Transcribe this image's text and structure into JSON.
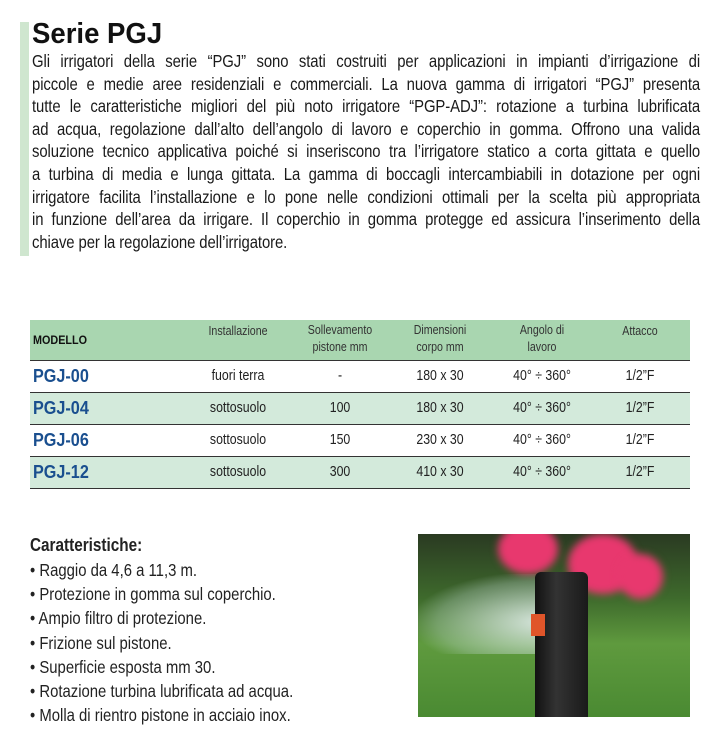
{
  "title": "Serie PGJ",
  "intro_lines": [
    "Gli irrigatori della serie “PGJ” sono stati costruiti per applicazioni in impianti d’irrigazione di",
    "piccole e medie aree residenziali e commerciali. La nuova gamma di irrigatori “PGJ” presenta",
    "tutte le caratteristiche migliori del più noto irrigatore “PGP-ADJ”: rotazione a turbina lubrificata",
    "ad acqua, regolazione dall’alto dell’angolo di lavoro e coperchio in gomma. Offrono una valida",
    "soluzione tecnico applicativa poiché si inseriscono tra l’irrigatore statico a corta gittata e quello",
    "a turbina di media e lunga gittata. La gamma di boccagli intercambiabili in dotazione per ogni",
    "irrigatore facilita l’installazione e lo pone nelle condizioni ottimali per la scelta più appropriata",
    "in funzione dell’area da irrigare. Il coperchio in gomma protegge ed assicura l’inserimento della",
    "chiave per la regolazione dell’irrigatore."
  ],
  "table": {
    "headers": [
      "MODELLO",
      "Installazione",
      "Sollevamento\npistone mm",
      "Dimensioni\ncorpo mm",
      "Angolo di\nlavoro",
      "Attacco"
    ],
    "rows": [
      [
        "PGJ-00",
        "fuori terra",
        "-",
        "180 x 30",
        "40° ÷ 360°",
        "1/2”F"
      ],
      [
        "PGJ-04",
        "sottosuolo",
        "100",
        "180 x 30",
        "40° ÷ 360°",
        "1/2”F"
      ],
      [
        "PGJ-06",
        "sottosuolo",
        "150",
        "230 x 30",
        "40° ÷ 360°",
        "1/2”F"
      ],
      [
        "PGJ-12",
        "sottosuolo",
        "300",
        "410 x 30",
        "40° ÷ 360°",
        "1/2”F"
      ]
    ]
  },
  "features": {
    "heading": "Caratteristiche:",
    "items": [
      "Raggio da 4,6 a 11,3 m.",
      "Protezione in gomma sul coperchio.",
      "Ampio filtro di protezione.",
      "Frizione sul pistone.",
      "Superficie esposta mm 30.",
      "Rotazione turbina lubrificata ad acqua.",
      "Molla di rientro pistone in acciaio inox."
    ]
  },
  "colors": {
    "accent_bar": "#cfe6cf",
    "header_green": "#a9d6b0",
    "row_green": "#d3eadb",
    "model_blue": "#1a4f8f"
  }
}
